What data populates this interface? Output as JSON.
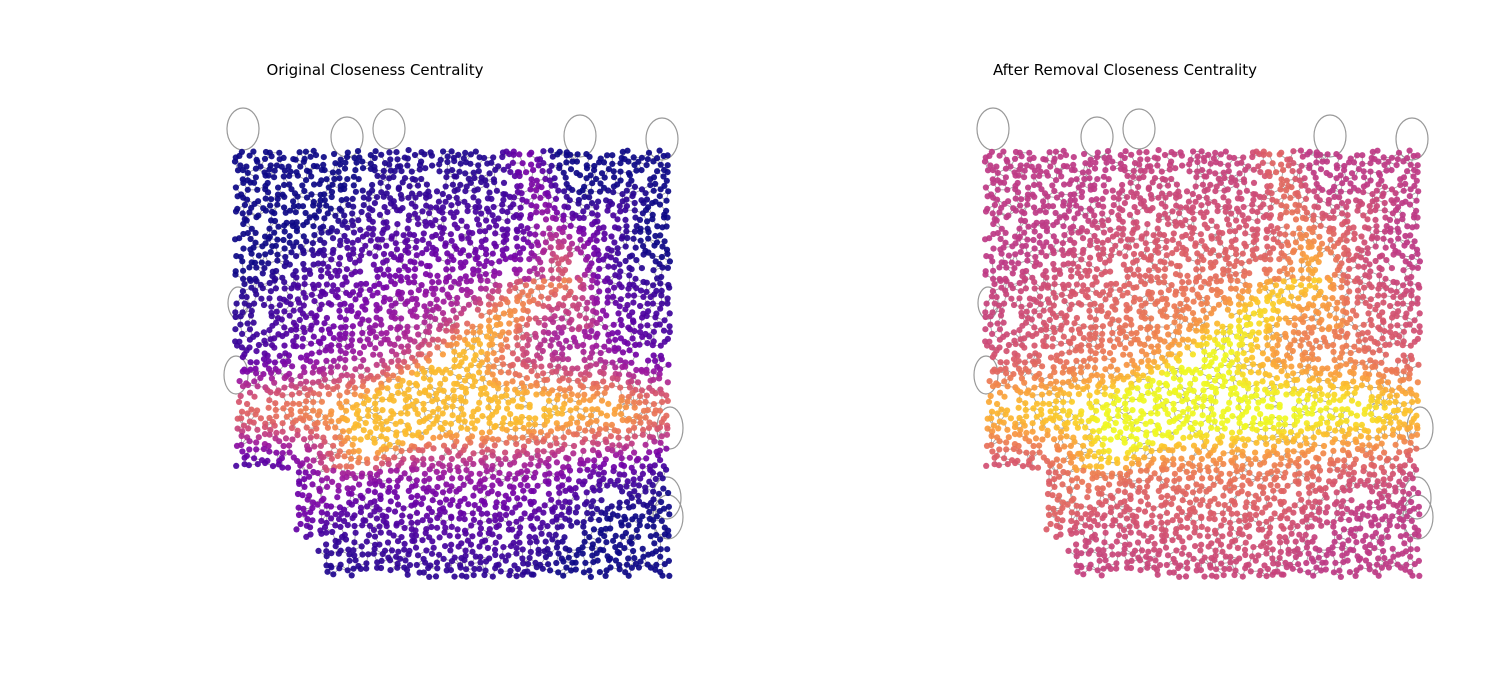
{
  "figure": {
    "panels": [
      {
        "title": "Original Closeness Centrality",
        "colormap": "plasma",
        "color_range": [
          0.0,
          0.85
        ],
        "palette": [
          "#0d0887",
          "#46039f",
          "#7201a8",
          "#9c179e",
          "#bd3786",
          "#d8576b",
          "#ed7953",
          "#fb9f3a",
          "#fdca26",
          "#f0f921"
        ]
      },
      {
        "title": "After Removal Closeness Centrality",
        "colormap": "plasma",
        "color_range": [
          0.45,
          1.0
        ],
        "palette": [
          "#0d0887",
          "#46039f",
          "#7201a8",
          "#9c179e",
          "#bd3786",
          "#d8576b",
          "#ed7953",
          "#fb9f3a",
          "#fdca26",
          "#f0f921"
        ]
      }
    ],
    "edge_color": "#8c8c8c",
    "self_loop_color": "#999999"
  }
}
